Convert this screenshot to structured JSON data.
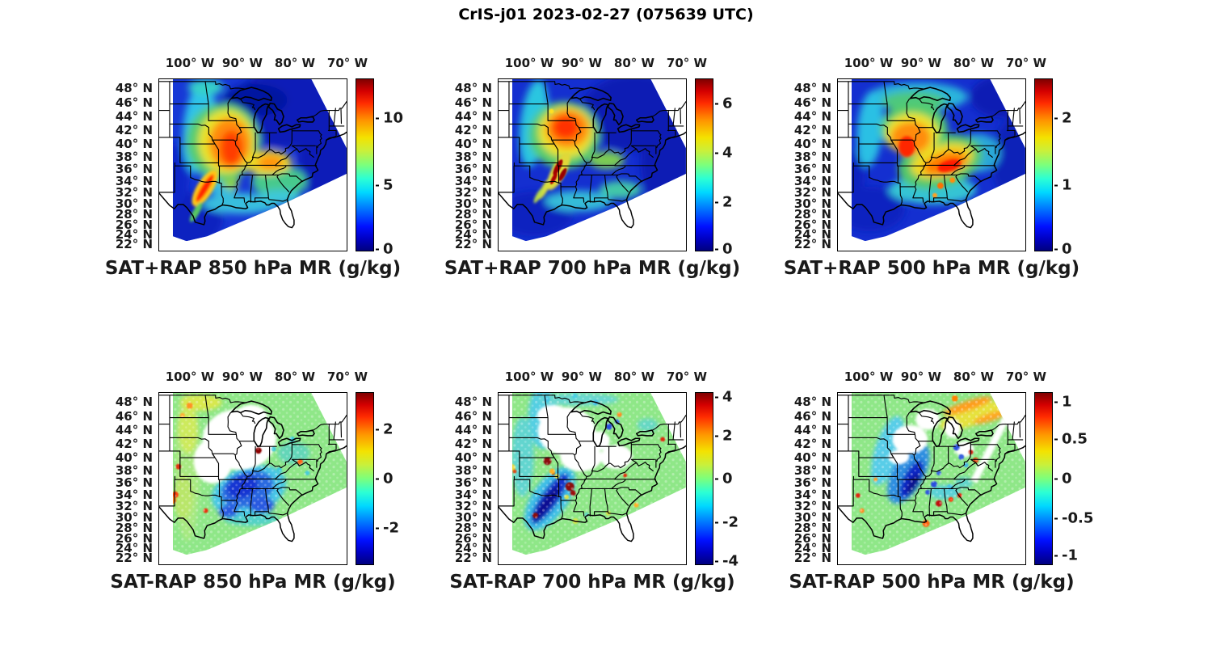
{
  "figure_title": "CrIS-j01 2023-02-27 (075639 UTC)",
  "axes": {
    "lon_ticks": [
      "100° W",
      "90° W",
      "80° W",
      "70° W"
    ],
    "lat_ticks": [
      "48° N",
      "46° N",
      "44° N",
      "42° N",
      "40° N",
      "38° N",
      "36° N",
      "34° N",
      "32° N",
      "30° N",
      "28° N",
      "26° N",
      "24° N",
      "22° N"
    ]
  },
  "colors": {
    "colormap": "jet",
    "background": "#ffffff",
    "map_lines": "#000000",
    "diff_near_zero_green": "#8fe788"
  },
  "chart_data": [
    {
      "type": "heatmap",
      "title": "SAT+RAP 850 hPa MR (g/kg)",
      "level_hPa": 850,
      "units": "g/kg",
      "colormap": "jet",
      "colorbar_ticks": [
        "10",
        "5",
        "0"
      ],
      "colorbar_range": [
        0,
        13
      ],
      "summary": "Retrieved 850 hPa mixing ratio: moist orange/red plume 8-12 g/kg over IA/MO/IL with red streak in N Texas; dry dark blue over Great Lakes, Northeast and W/S Texas; cyan band along the Plains and Gulf coast; white outside satellite swath."
    },
    {
      "type": "heatmap",
      "title": "SAT+RAP 700 hPa MR (g/kg)",
      "level_hPa": 700,
      "units": "g/kg",
      "colormap": "jet",
      "colorbar_ticks": [
        "6",
        "4",
        "2",
        "0"
      ],
      "colorbar_range": [
        0,
        7
      ],
      "summary": "Retrieved 700 hPa mixing ratio: orange/red maximum 5-7 g/kg over IA/MO/IL, dark-red narrow streaks over AR/OK, cyan-green band on the western Plains, dark blue over Great Lakes, Northeast and Texas."
    },
    {
      "type": "heatmap",
      "title": "SAT+RAP 500 hPa MR (g/kg)",
      "level_hPa": 500,
      "units": "g/kg",
      "colormap": "jet",
      "colorbar_ticks": [
        "2",
        "1",
        "0"
      ],
      "colorbar_range": [
        0,
        2.6
      ],
      "summary": "Retrieved 500 hPa mixing ratio: orange/red band 1.5-2.5 g/kg from IA/MO southeast through KY/TN, cyan-green upper Midwest, dark blue Northeast corner and south Texas."
    },
    {
      "type": "heatmap",
      "title": "SAT-RAP 850 hPa MR (g/kg)",
      "level_hPa": 850,
      "units": "g/kg",
      "colormap": "jet",
      "colorbar_ticks": [
        "2",
        "0",
        "-2"
      ],
      "colorbar_range": [
        -3.5,
        3.5
      ],
      "summary": "SAT minus RAP 850 hPa difference: mostly near zero (green dots); negative blue cluster -1 to -3 over AR/LA/MS; scattered positive orange-red dots along west Texas/panhandle edge and N Plains; white where no clear-sky retrievals (cloudy IA/MO/IL region)."
    },
    {
      "type": "heatmap",
      "title": "SAT-RAP 700 hPa MR (g/kg)",
      "level_hPa": 700,
      "units": "g/kg",
      "colormap": "jet",
      "colorbar_ticks": [
        "4",
        "2",
        "0",
        "-2",
        "-4"
      ],
      "colorbar_range": [
        -4,
        4
      ],
      "summary": "SAT minus RAP 700 hPa difference: near-zero green background; strong negative dark-blue streak -3 to -4 from central TX through OK/AR; isolated dark-red positive dots near MO/AR; white data gaps over the cloudy Midwest."
    },
    {
      "type": "heatmap",
      "title": "SAT-RAP 500 hPa MR (g/kg)",
      "level_hPa": 500,
      "units": "g/kg",
      "colormap": "jet",
      "colorbar_ticks": [
        "1",
        "0.5",
        "0",
        "-0.5",
        "-1"
      ],
      "colorbar_range": [
        -1.1,
        1.1
      ],
      "summary": "SAT minus RAP 500 hPa difference: green near-zero field; negative blue band -0.5 to -1 over KS/MO/AR; positive orange streaks +0.5 to +1 over the eastern Great Lakes; scattered red dots in the Southeast; white gaps over Midwest."
    }
  ]
}
